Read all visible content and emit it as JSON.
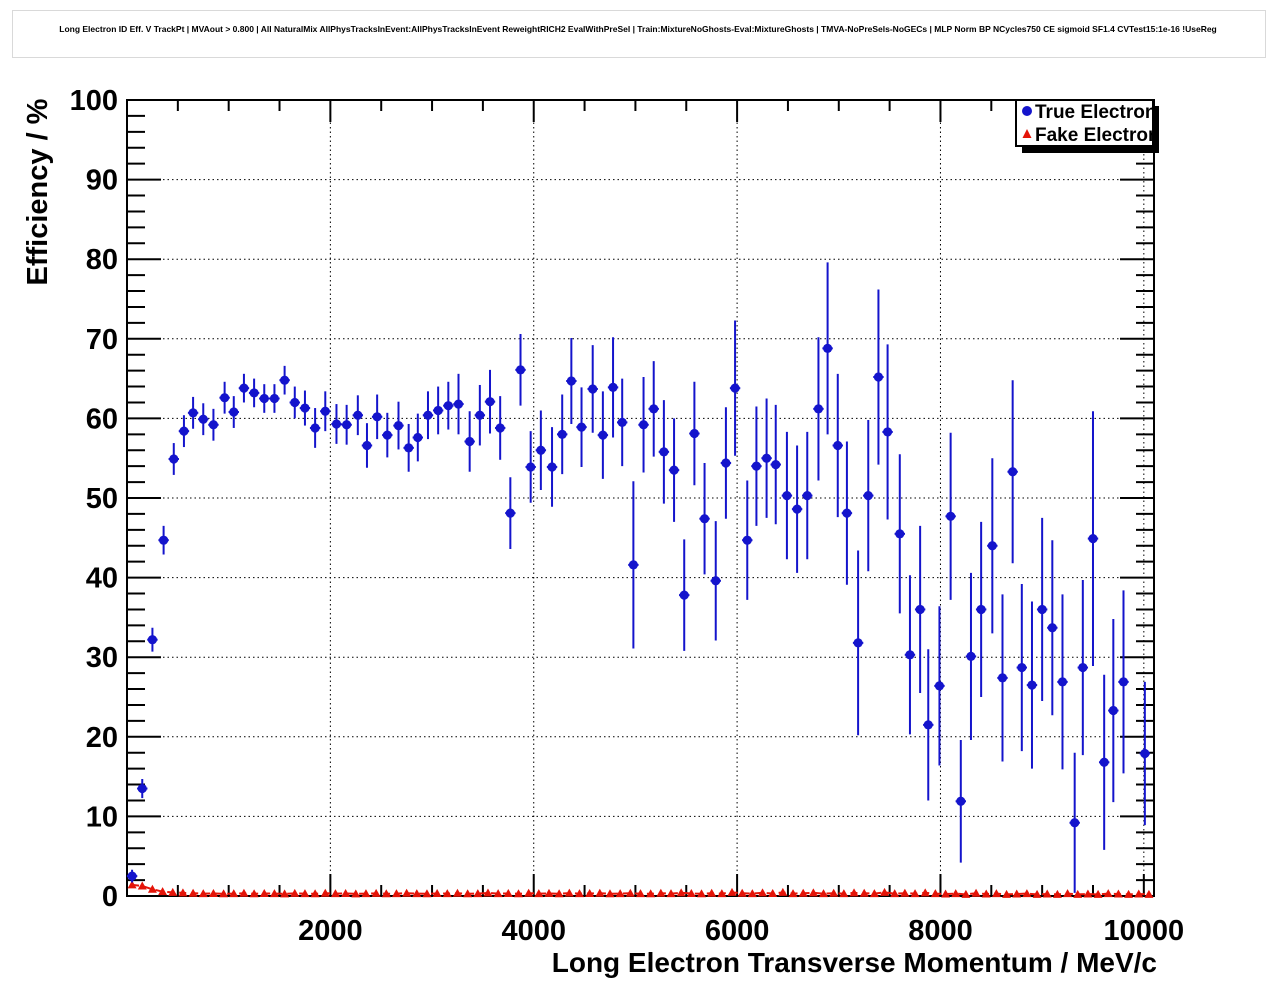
{
  "title": "Long Electron ID Eff. V TrackPt | MVAout > 0.800 | All NaturalMix AllPhysTracksInEvent:AllPhysTracksInEvent ReweightRICH2 EvalWithPreSel | Train:MixtureNoGhosts-Eval:MixtureGhosts | TMVA-NoPreSels-NoGECs | MLP Norm BP NCycles750 CE sigmoid SF1.4 CVTest15:1e-16 !UseReg",
  "chart_data": {
    "type": "scatter",
    "title": "Long Electron ID Eff. V TrackPt | MVAout > 0.800 | All NaturalMix AllPhysTracksInEvent:AllPhysTracksInEvent ReweightRICH2 EvalWithPreSel | Train:MixtureNoGhosts-Eval:MixtureGhosts | TMVA-NoPreSels-NoGECs | MLP Norm BP NCycles750 CE sigmoid SF1.4 CVTest15:1e-16 !UseReg",
    "xlabel": "Long Electron Transverse Momentum / MeV/c",
    "ylabel": "Efficiency / %",
    "xlim": [
      0,
      10100
    ],
    "ylim": [
      0,
      100
    ],
    "x_major_ticks": [
      2000,
      4000,
      6000,
      8000,
      10000
    ],
    "x_minor_step": 500,
    "y_major_step": 10,
    "y_minor_step": 2,
    "grid": "dotted-on-major-ticks-both-axes",
    "legend": {
      "position": "top-right",
      "entries": [
        "True Electron",
        "Fake Electron"
      ]
    },
    "colors": {
      "true_electron": "#1414cc",
      "fake_electron": "#e41408",
      "grid": "#000000",
      "frame": "#000000"
    },
    "series": [
      {
        "name": "True Electron",
        "marker": "circle",
        "color": "#1414cc",
        "points_format": [
          "pt_MeV",
          "efficiency_pct",
          "error_pct"
        ],
        "points": [
          [
            50,
            2.5,
            0.8
          ],
          [
            150,
            13.5,
            1.2
          ],
          [
            250,
            32.2,
            1.5
          ],
          [
            360,
            44.7,
            1.8
          ],
          [
            460,
            54.9,
            2.0
          ],
          [
            560,
            58.4,
            2.0
          ],
          [
            650,
            60.7,
            2.0
          ],
          [
            750,
            59.9,
            2.0
          ],
          [
            850,
            59.2,
            2.0
          ],
          [
            960,
            62.6,
            2.0
          ],
          [
            1050,
            60.8,
            2.0
          ],
          [
            1150,
            63.8,
            1.8
          ],
          [
            1250,
            63.2,
            1.8
          ],
          [
            1350,
            62.5,
            1.8
          ],
          [
            1450,
            62.5,
            1.8
          ],
          [
            1550,
            64.8,
            1.8
          ],
          [
            1650,
            62.0,
            2.0
          ],
          [
            1750,
            61.3,
            2.2
          ],
          [
            1850,
            58.8,
            2.5
          ],
          [
            1950,
            60.9,
            2.5
          ],
          [
            2060,
            59.3,
            2.5
          ],
          [
            2160,
            59.2,
            2.5
          ],
          [
            2270,
            60.4,
            2.5
          ],
          [
            2360,
            56.6,
            2.8
          ],
          [
            2460,
            60.2,
            2.8
          ],
          [
            2560,
            57.9,
            2.8
          ],
          [
            2670,
            59.1,
            3.0
          ],
          [
            2770,
            56.3,
            3.0
          ],
          [
            2860,
            57.6,
            3.0
          ],
          [
            2960,
            60.4,
            3.0
          ],
          [
            3060,
            61.0,
            3.0
          ],
          [
            3160,
            61.6,
            3.0
          ],
          [
            3260,
            61.8,
            3.8
          ],
          [
            3370,
            57.1,
            3.8
          ],
          [
            3470,
            60.4,
            3.8
          ],
          [
            3570,
            62.1,
            4.0
          ],
          [
            3670,
            58.8,
            4.0
          ],
          [
            3770,
            48.1,
            4.5
          ],
          [
            3870,
            66.1,
            4.5
          ],
          [
            3970,
            53.9,
            4.5
          ],
          [
            4070,
            56.0,
            5.0
          ],
          [
            4180,
            53.9,
            5.0
          ],
          [
            4280,
            58.0,
            5.0
          ],
          [
            4370,
            64.7,
            5.4
          ],
          [
            4470,
            58.9,
            5.0
          ],
          [
            4580,
            63.7,
            5.5
          ],
          [
            4680,
            57.9,
            5.5
          ],
          [
            4780,
            63.9,
            6.3
          ],
          [
            4870,
            59.5,
            5.5
          ],
          [
            4980,
            41.6,
            10.5
          ],
          [
            5080,
            59.2,
            6.0
          ],
          [
            5180,
            61.2,
            6.0
          ],
          [
            5280,
            55.8,
            6.5
          ],
          [
            5380,
            53.5,
            6.5
          ],
          [
            5480,
            37.8,
            7.0
          ],
          [
            5580,
            58.1,
            6.5
          ],
          [
            5680,
            47.4,
            7.0
          ],
          [
            5790,
            39.6,
            7.5
          ],
          [
            5890,
            54.4,
            7.0
          ],
          [
            5980,
            63.8,
            8.5
          ],
          [
            6100,
            44.7,
            7.5
          ],
          [
            6190,
            54.0,
            7.5
          ],
          [
            6290,
            55.0,
            7.5
          ],
          [
            6380,
            54.2,
            7.5
          ],
          [
            6490,
            50.3,
            8.0
          ],
          [
            6590,
            48.6,
            8.0
          ],
          [
            6690,
            50.3,
            8.0
          ],
          [
            6800,
            61.2,
            9.0
          ],
          [
            6890,
            68.8,
            10.8
          ],
          [
            6990,
            56.6,
            9.0
          ],
          [
            7080,
            48.1,
            9.0
          ],
          [
            7190,
            31.8,
            11.6
          ],
          [
            7290,
            50.3,
            9.5
          ],
          [
            7390,
            65.2,
            11.0
          ],
          [
            7480,
            58.3,
            11.0
          ],
          [
            7600,
            45.5,
            10.0
          ],
          [
            7700,
            30.3,
            10.0
          ],
          [
            7800,
            36.0,
            10.5
          ],
          [
            7880,
            21.5,
            9.5
          ],
          [
            7990,
            26.4,
            10.0
          ],
          [
            8100,
            47.7,
            10.5
          ],
          [
            8200,
            11.9,
            7.7
          ],
          [
            8300,
            30.1,
            10.5
          ],
          [
            8400,
            36.0,
            11.0
          ],
          [
            8510,
            44.0,
            11.0
          ],
          [
            8610,
            27.4,
            10.5
          ],
          [
            8710,
            53.3,
            11.5
          ],
          [
            8800,
            28.7,
            10.5
          ],
          [
            8900,
            26.5,
            10.5
          ],
          [
            9000,
            36.0,
            11.5
          ],
          [
            9100,
            33.7,
            11.0
          ],
          [
            9200,
            26.9,
            11.0
          ],
          [
            9320,
            9.2,
            8.8
          ],
          [
            9400,
            28.7,
            11.0
          ],
          [
            9500,
            44.9,
            16.0
          ],
          [
            9610,
            16.8,
            11.0
          ],
          [
            9700,
            23.3,
            11.5
          ],
          [
            9800,
            26.9,
            11.5
          ],
          [
            10010,
            17.9,
            9.0
          ]
        ]
      },
      {
        "name": "Fake Electron",
        "marker": "triangle",
        "color": "#e41408",
        "line": "dashed",
        "points_format": [
          "pt_MeV",
          "efficiency_pct"
        ],
        "points": [
          [
            50,
            1.4
          ],
          [
            150,
            1.25
          ],
          [
            250,
            0.85
          ],
          [
            350,
            0.55
          ],
          [
            450,
            0.45
          ],
          [
            550,
            0.4
          ],
          [
            650,
            0.35
          ],
          [
            750,
            0.3
          ],
          [
            850,
            0.32
          ],
          [
            950,
            0.28
          ],
          [
            1050,
            0.3
          ],
          [
            1150,
            0.34
          ],
          [
            1250,
            0.28
          ],
          [
            1350,
            0.32
          ],
          [
            1450,
            0.3
          ],
          [
            1550,
            0.27
          ],
          [
            1650,
            0.33
          ],
          [
            1750,
            0.3
          ],
          [
            1850,
            0.28
          ],
          [
            1950,
            0.35
          ],
          [
            2050,
            0.3
          ],
          [
            2150,
            0.32
          ],
          [
            2250,
            0.27
          ],
          [
            2350,
            0.3
          ],
          [
            2450,
            0.33
          ],
          [
            2550,
            0.28
          ],
          [
            2650,
            0.3
          ],
          [
            2750,
            0.35
          ],
          [
            2850,
            0.3
          ],
          [
            2950,
            0.28
          ],
          [
            3050,
            0.32
          ],
          [
            3150,
            0.3
          ],
          [
            3250,
            0.34
          ],
          [
            3350,
            0.28
          ],
          [
            3450,
            0.3
          ],
          [
            3550,
            0.38
          ],
          [
            3650,
            0.3
          ],
          [
            3750,
            0.32
          ],
          [
            3850,
            0.28
          ],
          [
            3950,
            0.35
          ],
          [
            4050,
            0.3
          ],
          [
            4150,
            0.33
          ],
          [
            4250,
            0.28
          ],
          [
            4350,
            0.36
          ],
          [
            4450,
            0.3
          ],
          [
            4550,
            0.32
          ],
          [
            4650,
            0.35
          ],
          [
            4750,
            0.28
          ],
          [
            4850,
            0.3
          ],
          [
            4950,
            0.34
          ],
          [
            5050,
            0.3
          ],
          [
            5150,
            0.28
          ],
          [
            5250,
            0.35
          ],
          [
            5350,
            0.3
          ],
          [
            5450,
            0.4
          ],
          [
            5550,
            0.32
          ],
          [
            5650,
            0.28
          ],
          [
            5750,
            0.35
          ],
          [
            5850,
            0.3
          ],
          [
            5950,
            0.45
          ],
          [
            6050,
            0.35
          ],
          [
            6150,
            0.3
          ],
          [
            6250,
            0.4
          ],
          [
            6350,
            0.32
          ],
          [
            6450,
            0.45
          ],
          [
            6550,
            0.3
          ],
          [
            6650,
            0.35
          ],
          [
            6750,
            0.4
          ],
          [
            6850,
            0.3
          ],
          [
            6950,
            0.35
          ],
          [
            7050,
            0.3
          ],
          [
            7150,
            0.4
          ],
          [
            7250,
            0.35
          ],
          [
            7350,
            0.3
          ],
          [
            7450,
            0.45
          ],
          [
            7550,
            0.3
          ],
          [
            7650,
            0.35
          ],
          [
            7750,
            0.3
          ],
          [
            7850,
            0.4
          ],
          [
            7950,
            0.3
          ],
          [
            8050,
            0.25
          ],
          [
            8150,
            0.3
          ],
          [
            8250,
            0.2
          ],
          [
            8350,
            0.35
          ],
          [
            8450,
            0.25
          ],
          [
            8550,
            0.3
          ],
          [
            8650,
            0.2
          ],
          [
            8750,
            0.25
          ],
          [
            8850,
            0.3
          ],
          [
            8950,
            0.2
          ],
          [
            9050,
            0.25
          ],
          [
            9150,
            0.2
          ],
          [
            9250,
            0.3
          ],
          [
            9350,
            0.2
          ],
          [
            9450,
            0.25
          ],
          [
            9550,
            0.2
          ],
          [
            9650,
            0.3
          ],
          [
            9750,
            0.25
          ],
          [
            9850,
            0.2
          ],
          [
            9950,
            0.25
          ],
          [
            10050,
            0.2
          ]
        ]
      }
    ]
  }
}
